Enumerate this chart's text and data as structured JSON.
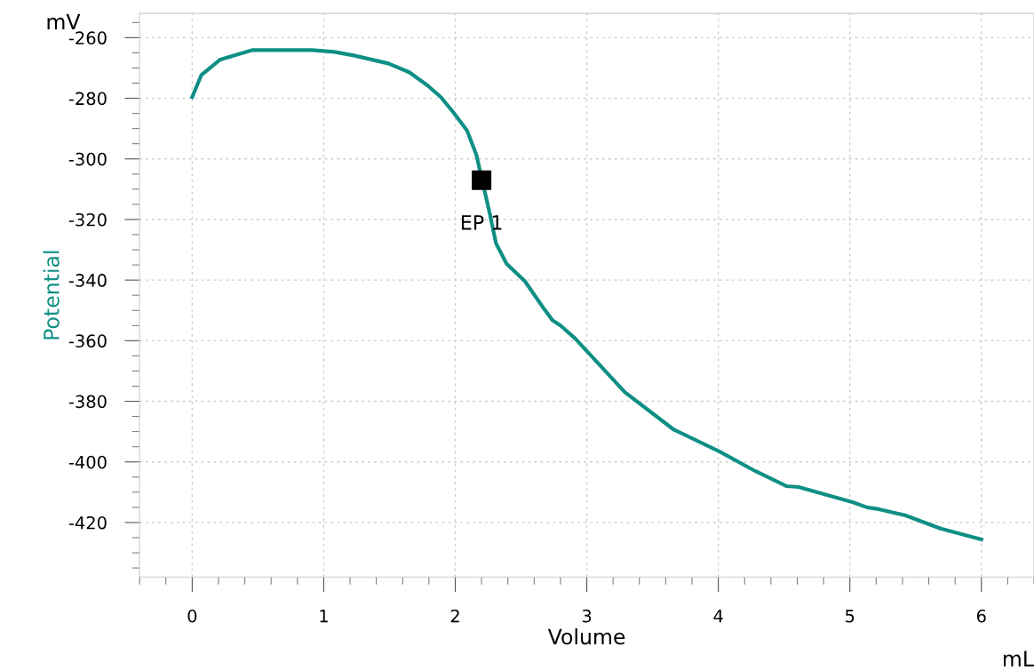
{
  "chart_data": {
    "type": "line",
    "xlabel": "Volume",
    "ylabel": "Potential",
    "annotations": [
      "mV",
      "mL",
      {
        "text": "EP 1",
        "x": 2.2,
        "y": -307
      }
    ],
    "xlim": [
      -0.4,
      6.4
    ],
    "ylim": [
      -438,
      -252
    ],
    "xticks": [
      0,
      1,
      2,
      3,
      4,
      5,
      6
    ],
    "yticks": [
      -260,
      -280,
      -300,
      -320,
      -340,
      -360,
      -380,
      -400,
      -420
    ],
    "grid": true,
    "legend": false,
    "series": [
      {
        "color": "#0e8f85",
        "marker": "none",
        "line_style": "solid",
        "x": [
          0,
          0.07,
          0.21,
          0.34,
          0.46,
          0.91,
          1.08,
          1.22,
          1.49,
          1.65,
          1.79,
          1.89,
          1.99,
          2.09,
          2.16,
          2.26,
          2.31,
          2.39,
          2.53,
          2.68,
          2.74,
          2.8,
          2.91,
          3.29,
          3.66,
          4.01,
          4.28,
          4.52,
          4.61,
          5.02,
          5.13,
          5.22,
          5.42,
          5.69,
          6
        ],
        "values": [
          -279.6,
          -272.3,
          -267.3,
          -265.6,
          -264.1,
          -264.1,
          -264.7,
          -265.8,
          -268.5,
          -271.4,
          -275.8,
          -279.6,
          -284.9,
          -290.7,
          -298.6,
          -317.6,
          -327.9,
          -334.6,
          -340.4,
          -349.8,
          -353.3,
          -355,
          -359.2,
          -377,
          -389.3,
          -396.6,
          -403,
          -408,
          -408.3,
          -413.3,
          -415,
          -415.6,
          -417.6,
          -422,
          -425.6
        ]
      },
      {
        "type": "scatter",
        "color": "#000000",
        "marker": "square",
        "x": [
          2.2
        ],
        "values": [
          -307
        ]
      }
    ]
  }
}
